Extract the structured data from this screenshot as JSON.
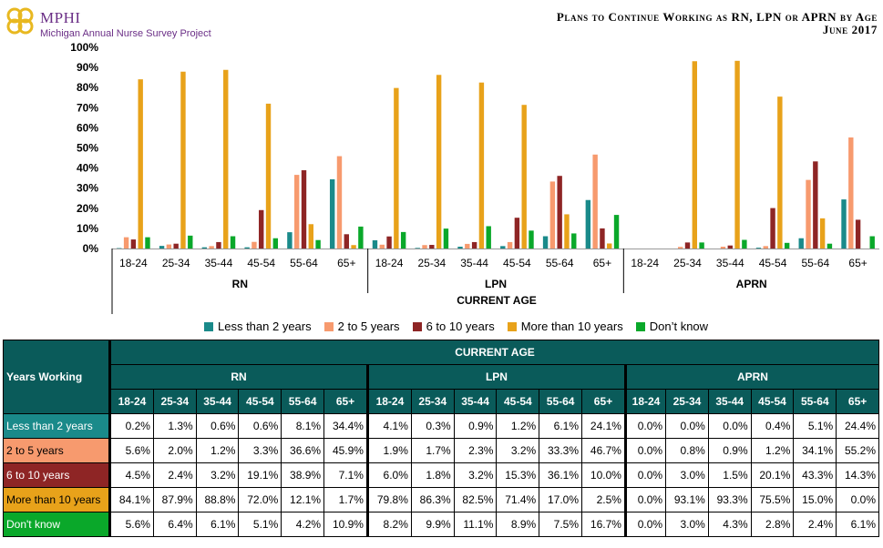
{
  "header": {
    "logo_name": "MPHI",
    "logo_subtitle": "Michigan Annual Nurse Survey Project",
    "title_line1": "Plans to Continue Working as RN, LPN or APRN by Age",
    "title_line2": "June 2017"
  },
  "chart_data": {
    "type": "bar",
    "xlabel": "CURRENT AGE",
    "ylabel": "",
    "ylim": [
      0,
      100
    ],
    "yticks": [
      "0%",
      "10%",
      "20%",
      "30%",
      "40%",
      "50%",
      "60%",
      "70%",
      "80%",
      "90%",
      "100%"
    ],
    "groups": [
      "RN",
      "LPN",
      "APRN"
    ],
    "categories": [
      "18-24",
      "25-34",
      "35-44",
      "45-54",
      "55-64",
      "65+"
    ],
    "legend_position": "bottom",
    "series": [
      {
        "name": "Less than 2 years",
        "color": "#1a8a8a",
        "values": {
          "RN": [
            0.2,
            1.3,
            0.6,
            0.6,
            8.1,
            34.4
          ],
          "LPN": [
            4.1,
            0.3,
            0.9,
            1.2,
            6.1,
            24.1
          ],
          "APRN": [
            0.0,
            0.0,
            0.0,
            0.4,
            5.1,
            24.4
          ]
        }
      },
      {
        "name": "2 to 5 years",
        "color": "#f79a6e",
        "values": {
          "RN": [
            5.6,
            2.0,
            1.2,
            3.3,
            36.6,
            45.9
          ],
          "LPN": [
            1.9,
            1.7,
            2.3,
            3.2,
            33.3,
            46.7
          ],
          "APRN": [
            0.0,
            0.8,
            0.9,
            1.2,
            34.1,
            55.2
          ]
        }
      },
      {
        "name": "6 to 10 years",
        "color": "#8e2525",
        "values": {
          "RN": [
            4.5,
            2.4,
            3.2,
            19.1,
            38.9,
            7.1
          ],
          "LPN": [
            6.0,
            1.8,
            3.2,
            15.3,
            36.1,
            10.0
          ],
          "APRN": [
            0.0,
            3.0,
            1.5,
            20.1,
            43.3,
            14.3
          ]
        }
      },
      {
        "name": "More than 10 years",
        "color": "#e8a21a",
        "values": {
          "RN": [
            84.1,
            87.9,
            88.8,
            72.0,
            12.1,
            1.7
          ],
          "LPN": [
            79.8,
            86.3,
            82.5,
            71.4,
            17.0,
            2.5
          ],
          "APRN": [
            0.0,
            93.1,
            93.3,
            75.5,
            15.0,
            0.0
          ]
        }
      },
      {
        "name": "Don’t know",
        "color": "#0aa82a",
        "values": {
          "RN": [
            5.6,
            6.4,
            6.1,
            5.1,
            4.2,
            10.9
          ],
          "LPN": [
            8.2,
            9.9,
            11.1,
            8.9,
            7.5,
            16.7
          ],
          "APRN": [
            0.0,
            3.0,
            4.3,
            2.8,
            2.4,
            6.1
          ]
        }
      }
    ]
  },
  "table": {
    "corner_label": "Years Working",
    "top_header": "CURRENT AGE",
    "group_headers": [
      "RN",
      "LPN",
      "APRN"
    ],
    "age_headers": [
      "18-24",
      "25-34",
      "35-44",
      "45-54",
      "55-64",
      "65+"
    ],
    "rows": [
      {
        "label": "Less than 2 years",
        "bg": "#1a8a8a",
        "fg": "#ffffff",
        "cells": [
          "0.2%",
          "1.3%",
          "0.6%",
          "0.6%",
          "8.1%",
          "34.4%",
          "4.1%",
          "0.3%",
          "0.9%",
          "1.2%",
          "6.1%",
          "24.1%",
          "0.0%",
          "0.0%",
          "0.0%",
          "0.4%",
          "5.1%",
          "24.4%"
        ]
      },
      {
        "label": "2 to 5 years",
        "bg": "#f79a6e",
        "fg": "#000000",
        "cells": [
          "5.6%",
          "2.0%",
          "1.2%",
          "3.3%",
          "36.6%",
          "45.9%",
          "1.9%",
          "1.7%",
          "2.3%",
          "3.2%",
          "33.3%",
          "46.7%",
          "0.0%",
          "0.8%",
          "0.9%",
          "1.2%",
          "34.1%",
          "55.2%"
        ]
      },
      {
        "label": "6 to 10 years",
        "bg": "#8e2525",
        "fg": "#ffffff",
        "cells": [
          "4.5%",
          "2.4%",
          "3.2%",
          "19.1%",
          "38.9%",
          "7.1%",
          "6.0%",
          "1.8%",
          "3.2%",
          "15.3%",
          "36.1%",
          "10.0%",
          "0.0%",
          "3.0%",
          "1.5%",
          "20.1%",
          "43.3%",
          "14.3%"
        ]
      },
      {
        "label": "More than 10 years",
        "bg": "#e8a21a",
        "fg": "#000000",
        "cells": [
          "84.1%",
          "87.9%",
          "88.8%",
          "72.0%",
          "12.1%",
          "1.7%",
          "79.8%",
          "86.3%",
          "82.5%",
          "71.4%",
          "17.0%",
          "2.5%",
          "0.0%",
          "93.1%",
          "93.3%",
          "75.5%",
          "15.0%",
          "0.0%"
        ]
      },
      {
        "label": "Don't know",
        "bg": "#0aa82a",
        "fg": "#ffffff",
        "cells": [
          "5.6%",
          "6.4%",
          "6.1%",
          "5.1%",
          "4.2%",
          "10.9%",
          "8.2%",
          "9.9%",
          "11.1%",
          "8.9%",
          "7.5%",
          "16.7%",
          "0.0%",
          "3.0%",
          "4.3%",
          "2.8%",
          "2.4%",
          "6.1%"
        ]
      }
    ]
  }
}
